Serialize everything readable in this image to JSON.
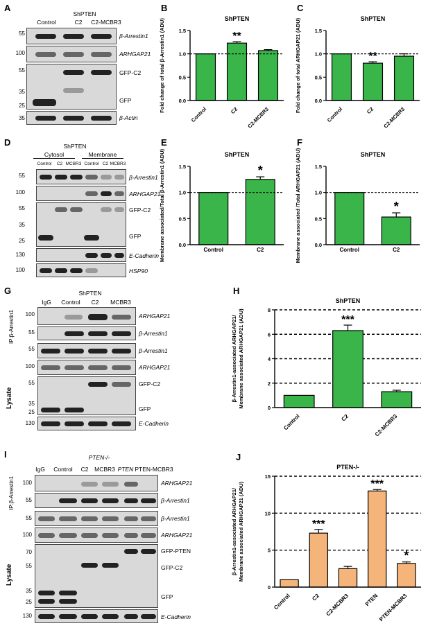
{
  "panels": {
    "A": "A",
    "B": "B",
    "C": "C",
    "D": "D",
    "E": "E",
    "F": "F",
    "G": "G",
    "H": "H",
    "I": "I",
    "J": "J"
  },
  "blotA": {
    "header": "ShPTEN",
    "lanes": [
      "Control",
      "C2",
      "C2-MCBR3"
    ],
    "mw": [
      "55",
      "100",
      "55",
      "35",
      "25",
      "35"
    ],
    "labels": [
      "β-Arrestin1",
      "ARHGAP21",
      "GFP-C2",
      "GFP",
      "β-Actin"
    ]
  },
  "blotD": {
    "header": "ShPTEN",
    "groups": [
      "Cytosol",
      "Membrane"
    ],
    "lanes": [
      "Control",
      "C2",
      "MCBR3",
      "Control",
      "C2",
      "MCBR3"
    ],
    "mw": [
      "55",
      "100",
      "55",
      "35",
      "25",
      "130",
      "100"
    ],
    "labels": [
      "β-Arrestin1",
      "ARHGAP21",
      "GFP-C2",
      "GFP",
      "E-Cadherin",
      "HSP90"
    ]
  },
  "blotG": {
    "header": "ShPTEN",
    "lanes": [
      "IgG",
      "Control",
      "C2",
      "MCBR3"
    ],
    "mw": [
      "100",
      "55",
      "55",
      "100",
      "55",
      "35",
      "25",
      "130"
    ],
    "labels": [
      "ARHGAP21",
      "β-Arrestin1",
      "β-Arrestin1",
      "ARHGAP21",
      "GFP-C2",
      "GFP",
      "E-Cadherin"
    ],
    "ip": "IP:β-Arrestin1",
    "lysate": "Lysate"
  },
  "blotI": {
    "header": "PTEN-/-",
    "lanes": [
      "IgG",
      "Control",
      "C2",
      "MCBR3",
      "PTEN",
      "PTEN-MCBR3"
    ],
    "mw": [
      "100",
      "55",
      "55",
      "100",
      "70",
      "55",
      "35",
      "25",
      "130"
    ],
    "labels": [
      "ARHGAP21",
      "β-Arrestin1",
      "β-Arrestin1",
      "ARHGAP21",
      "GFP-PTEN",
      "GFP-C2",
      "GFP",
      "E-Cadherin"
    ],
    "ip": "IP:β-Arrestin1",
    "lysate": "Lysate"
  },
  "chart_data": [
    {
      "panel": "B",
      "type": "bar",
      "title": "ShPTEN",
      "ylabel": "Fold change of total β-Arrestin1 (ADU)",
      "categories": [
        "Control",
        "C2",
        "C2-MCBR3"
      ],
      "values": [
        1.0,
        1.23,
        1.07
      ],
      "errors": [
        0,
        0.03,
        0.02
      ],
      "ylim": [
        0,
        1.5
      ],
      "yticks": [
        "0.0",
        "0.5",
        "1.0",
        "1.5"
      ],
      "annotations": [
        "",
        "**",
        ""
      ],
      "refline": 1.0,
      "color": "#3ab54a"
    },
    {
      "panel": "C",
      "type": "bar",
      "title": "ShPTEN",
      "ylabel": "Fold change of total ARHGAP21 (ADU)",
      "categories": [
        "Control",
        "C2",
        "C2-MCBR3"
      ],
      "values": [
        1.0,
        0.8,
        0.95
      ],
      "errors": [
        0,
        0.03,
        0.05
      ],
      "ylim": [
        0,
        1.5
      ],
      "yticks": [
        "0.0",
        "0.5",
        "1.0",
        "1.5"
      ],
      "annotations": [
        "",
        "**",
        ""
      ],
      "refline": 1.0,
      "color": "#3ab54a"
    },
    {
      "panel": "E",
      "type": "bar",
      "title": "ShPTEN",
      "ylabel": "Membrane associated/Total β-Arrestin1 (ADU)",
      "categories": [
        "Control",
        "C2"
      ],
      "values": [
        1.0,
        1.25
      ],
      "errors": [
        0,
        0.05
      ],
      "ylim": [
        0,
        1.5
      ],
      "yticks": [
        "0.0",
        "0.5",
        "1.0",
        "1.5"
      ],
      "annotations": [
        "",
        "*"
      ],
      "refline": 1.0,
      "color": "#3ab54a"
    },
    {
      "panel": "F",
      "type": "bar",
      "title": "ShPTEN",
      "ylabel": "Membrane associated /Total ARHGAP21 (ADU)",
      "categories": [
        "Control",
        "C2"
      ],
      "values": [
        1.0,
        0.53
      ],
      "errors": [
        0,
        0.08
      ],
      "ylim": [
        0,
        1.5
      ],
      "yticks": [
        "0.0",
        "0.5",
        "1.0",
        "1.5"
      ],
      "annotations": [
        "",
        "*"
      ],
      "refline": 1.0,
      "color": "#3ab54a"
    },
    {
      "panel": "H",
      "type": "bar",
      "title": "ShPTEN",
      "ylabel": "β-Arrestin1-associated ARHGAP21/ Membrane associated ARHGAP21 (ADU)",
      "categories": [
        "Control",
        "C2",
        "C2-MCBR3"
      ],
      "values": [
        1.0,
        6.3,
        1.3
      ],
      "errors": [
        0,
        0.45,
        0.12
      ],
      "ylim": [
        0,
        8
      ],
      "yticks": [
        "0",
        "2",
        "4",
        "6",
        "8"
      ],
      "annotations": [
        "",
        "***",
        ""
      ],
      "gridlines": [
        2,
        4,
        6,
        8
      ],
      "color": "#3ab54a"
    },
    {
      "panel": "J",
      "type": "bar",
      "title": "PTEN-/-",
      "ylabel": "β-Arrestin1-associated ARHGAP21/ Membrane associated ARHGAP21 (ADU)",
      "categories": [
        "Control",
        "C2",
        "C2-MCBR3",
        "PTEN",
        "PTEN-MCBR3"
      ],
      "values": [
        1.0,
        7.3,
        2.5,
        13.0,
        3.2
      ],
      "errors": [
        0,
        0.5,
        0.3,
        0.2,
        0.2
      ],
      "ylim": [
        0,
        15
      ],
      "yticks": [
        "0",
        "5",
        "10",
        "15"
      ],
      "annotations": [
        "",
        "***",
        "",
        "***",
        "*"
      ],
      "gridlines": [
        5,
        10,
        15
      ],
      "color": "#f5b57a"
    }
  ]
}
